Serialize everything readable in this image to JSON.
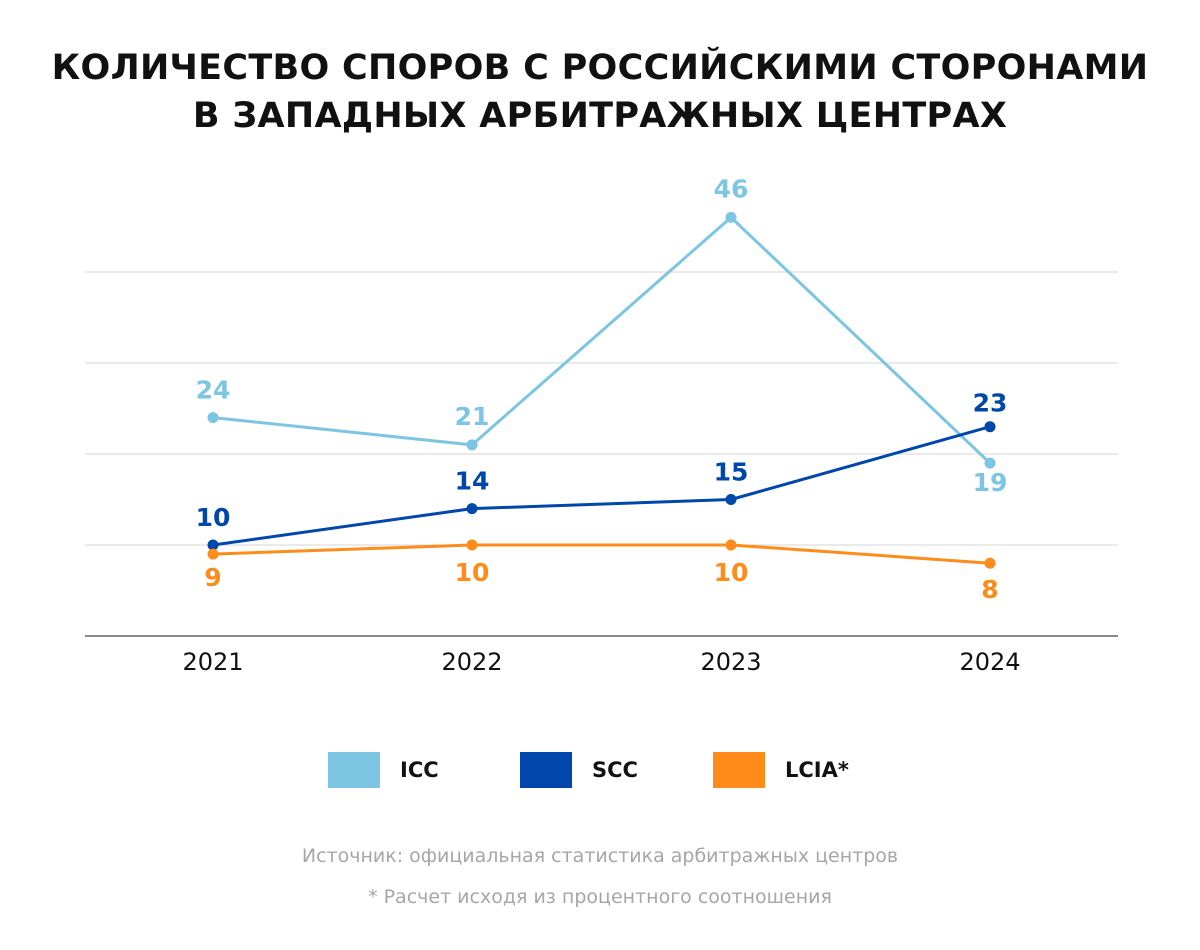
{
  "chart_data": {
    "type": "line",
    "title_lines": [
      "КОЛИЧЕСТВО СПОРОВ С РОССИЙСКИМИ СТОРОНАМИ",
      "В ЗАПАДНЫХ АРБИТРАЖНЫХ ЦЕНТРАХ"
    ],
    "categories": [
      "2021",
      "2022",
      "2023",
      "2024"
    ],
    "series": [
      {
        "name": "ICC",
        "color": "#7CC5E3",
        "values": [
          24,
          21,
          46,
          19
        ]
      },
      {
        "name": "SCC",
        "color": "#0047AB",
        "values": [
          10,
          14,
          15,
          23
        ]
      },
      {
        "name": "LCIA*",
        "color": "#FF8C1A",
        "values": [
          9,
          10,
          10,
          8
        ]
      }
    ],
    "ylim": [
      0,
      50
    ],
    "grid": true,
    "legend": "bottom"
  },
  "notes": {
    "source": "Источник: официальная статистика арбитражных центров",
    "footnote": "* Расчет исходя из процентного соотношения"
  }
}
